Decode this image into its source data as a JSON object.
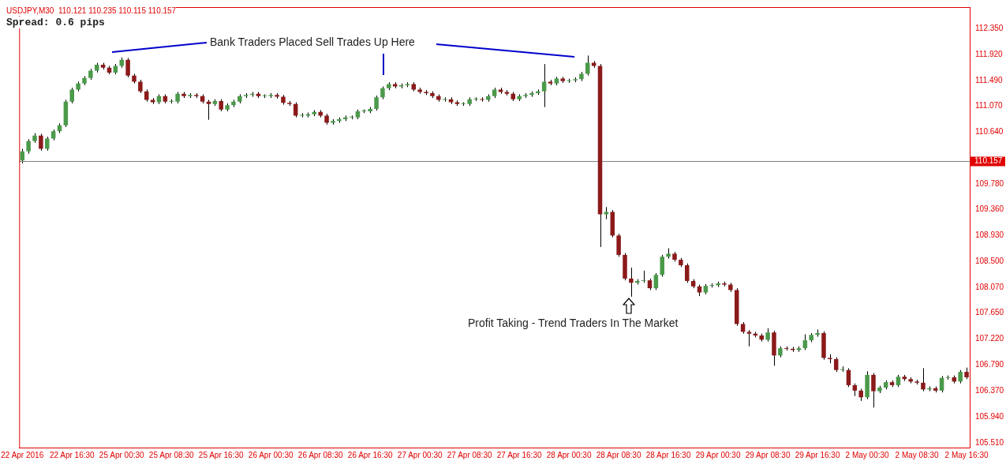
{
  "chart_data": {
    "type": "candlestick",
    "title": "USDJPY,M30  110.121 110.235 110.115 110.157",
    "annotations": [
      "Spread: 0.6 pips",
      "Bank Traders Placed Sell Trades Up Here",
      "Profit Taking - Trend Traders In The Market"
    ],
    "categories": [
      "22 Apr 2016",
      null,
      null,
      null,
      null,
      null,
      null,
      null,
      "22 Apr 16:30",
      null,
      null,
      null,
      null,
      null,
      null,
      null,
      "25 Apr 00:30",
      null,
      null,
      null,
      null,
      null,
      null,
      null,
      "25 Apr 08:30",
      null,
      null,
      null,
      null,
      null,
      null,
      null,
      "25 Apr 16:30",
      null,
      null,
      null,
      null,
      null,
      null,
      null,
      "26 Apr 00:30",
      null,
      null,
      null,
      null,
      null,
      null,
      null,
      "26 Apr 08:30",
      null,
      null,
      null,
      null,
      null,
      null,
      null,
      "26 Apr 16:30",
      null,
      null,
      null,
      null,
      null,
      null,
      null,
      "27 Apr 00:30",
      null,
      null,
      null,
      null,
      null,
      null,
      null,
      "27 Apr 08:30",
      null,
      null,
      null,
      null,
      null,
      null,
      null,
      "27 Apr 16:30",
      null,
      null,
      null,
      null,
      null,
      null,
      null,
      "28 Apr 00:30",
      null,
      null,
      null,
      null,
      null,
      null,
      null,
      "28 Apr 08:30",
      null,
      null,
      null,
      null,
      null,
      null,
      null,
      "28 Apr 16:30",
      null,
      null,
      null,
      null,
      null,
      null,
      null,
      "29 Apr 00:30",
      null,
      null,
      null,
      null,
      null,
      null,
      null,
      "29 Apr 08:30",
      null,
      null,
      null,
      null,
      null,
      null,
      null,
      "29 Apr 16:30",
      null,
      null,
      null,
      null,
      null,
      null,
      null,
      "2 May 00:30",
      null,
      null,
      null,
      null,
      null,
      null,
      null,
      "2 May 08:30",
      null,
      null,
      null,
      null,
      null,
      null,
      null,
      "2 May 16:30"
    ],
    "ohlc": [
      [
        110.17,
        110.36,
        110.12,
        110.32
      ],
      [
        110.32,
        110.52,
        110.28,
        110.49
      ],
      [
        110.49,
        110.62,
        110.46,
        110.58
      ],
      [
        110.58,
        110.61,
        110.33,
        110.36
      ],
      [
        110.36,
        110.56,
        110.33,
        110.53
      ],
      [
        110.53,
        110.68,
        110.5,
        110.65
      ],
      [
        110.65,
        110.78,
        110.62,
        110.75
      ],
      [
        110.75,
        111.17,
        110.72,
        111.14
      ],
      [
        111.14,
        111.37,
        111.11,
        111.34
      ],
      [
        111.34,
        111.47,
        111.31,
        111.44
      ],
      [
        111.44,
        111.56,
        111.41,
        111.53
      ],
      [
        111.53,
        111.68,
        111.5,
        111.65
      ],
      [
        111.65,
        111.78,
        111.62,
        111.75
      ],
      [
        111.75,
        111.78,
        111.67,
        111.7
      ],
      [
        111.7,
        111.73,
        111.59,
        111.62
      ],
      [
        111.62,
        111.76,
        111.59,
        111.73
      ],
      [
        111.73,
        111.87,
        111.7,
        111.83
      ],
      [
        111.83,
        111.86,
        111.54,
        111.57
      ],
      [
        111.57,
        111.6,
        111.44,
        111.47
      ],
      [
        111.47,
        111.5,
        111.28,
        111.31
      ],
      [
        111.31,
        111.34,
        111.14,
        111.17
      ],
      [
        111.17,
        111.2,
        111.1,
        111.13
      ],
      [
        111.13,
        111.26,
        111.1,
        111.23
      ],
      [
        111.23,
        111.26,
        111.11,
        111.14
      ],
      [
        111.14,
        111.18,
        111.11,
        111.14
      ],
      [
        111.14,
        111.3,
        111.11,
        111.27
      ],
      [
        111.27,
        111.3,
        111.2,
        111.23
      ],
      [
        111.23,
        111.28,
        111.2,
        111.25
      ],
      [
        111.25,
        111.28,
        111.2,
        111.23
      ],
      [
        111.23,
        111.26,
        111.11,
        111.14
      ],
      [
        111.14,
        111.17,
        110.84,
        111.1
      ],
      [
        111.1,
        111.18,
        111.07,
        111.15
      ],
      [
        111.15,
        111.18,
        110.98,
        111.01
      ],
      [
        111.01,
        111.11,
        110.98,
        111.08
      ],
      [
        111.08,
        111.17,
        111.05,
        111.14
      ],
      [
        111.14,
        111.26,
        111.11,
        111.23
      ],
      [
        111.23,
        111.28,
        111.2,
        111.25
      ],
      [
        111.25,
        111.3,
        111.22,
        111.27
      ],
      [
        111.27,
        111.3,
        111.2,
        111.23
      ],
      [
        111.23,
        111.26,
        111.2,
        111.23
      ],
      [
        111.23,
        111.28,
        111.2,
        111.25
      ],
      [
        111.25,
        111.28,
        111.19,
        111.22
      ],
      [
        111.22,
        111.25,
        111.09,
        111.12
      ],
      [
        111.12,
        111.15,
        111.07,
        111.1
      ],
      [
        111.1,
        111.13,
        110.88,
        110.91
      ],
      [
        110.91,
        110.95,
        110.88,
        110.91
      ],
      [
        110.91,
        110.96,
        110.88,
        110.93
      ],
      [
        110.93,
        111.0,
        110.9,
        110.97
      ],
      [
        110.97,
        111.0,
        110.88,
        110.91
      ],
      [
        110.91,
        110.94,
        110.76,
        110.79
      ],
      [
        110.79,
        110.85,
        110.76,
        110.82
      ],
      [
        110.82,
        110.88,
        110.79,
        110.85
      ],
      [
        110.85,
        110.91,
        110.82,
        110.88
      ],
      [
        110.88,
        110.91,
        110.85,
        110.88
      ],
      [
        110.88,
        111.01,
        110.85,
        110.98
      ],
      [
        110.98,
        111.01,
        110.95,
        110.98
      ],
      [
        110.98,
        111.05,
        110.95,
        111.02
      ],
      [
        111.02,
        111.24,
        110.99,
        111.21
      ],
      [
        111.21,
        111.39,
        111.18,
        111.36
      ],
      [
        111.36,
        111.46,
        111.33,
        111.43
      ],
      [
        111.43,
        111.46,
        111.36,
        111.39
      ],
      [
        111.39,
        111.44,
        111.36,
        111.41
      ],
      [
        111.41,
        111.46,
        111.38,
        111.43
      ],
      [
        111.43,
        111.46,
        111.31,
        111.34
      ],
      [
        111.34,
        111.37,
        111.27,
        111.3
      ],
      [
        111.3,
        111.33,
        111.25,
        111.28
      ],
      [
        111.28,
        111.31,
        111.2,
        111.23
      ],
      [
        111.23,
        111.26,
        111.14,
        111.17
      ],
      [
        111.17,
        111.21,
        111.14,
        111.18
      ],
      [
        111.18,
        111.21,
        111.1,
        111.13
      ],
      [
        111.13,
        111.16,
        111.07,
        111.1
      ],
      [
        111.1,
        111.13,
        111.07,
        111.1
      ],
      [
        111.1,
        111.21,
        111.07,
        111.18
      ],
      [
        111.18,
        111.21,
        111.15,
        111.18
      ],
      [
        111.18,
        111.21,
        111.14,
        111.17
      ],
      [
        111.17,
        111.26,
        111.14,
        111.23
      ],
      [
        111.23,
        111.37,
        111.2,
        111.34
      ],
      [
        111.34,
        111.37,
        111.27,
        111.3
      ],
      [
        111.3,
        111.33,
        111.24,
        111.27
      ],
      [
        111.27,
        111.3,
        111.15,
        111.18
      ],
      [
        111.18,
        111.26,
        111.15,
        111.23
      ],
      [
        111.23,
        111.28,
        111.2,
        111.25
      ],
      [
        111.25,
        111.31,
        111.22,
        111.28
      ],
      [
        111.28,
        111.34,
        111.25,
        111.31
      ],
      [
        111.31,
        111.76,
        111.05,
        111.47
      ],
      [
        111.47,
        111.5,
        111.41,
        111.44
      ],
      [
        111.44,
        111.55,
        111.41,
        111.52
      ],
      [
        111.52,
        111.55,
        111.45,
        111.48
      ],
      [
        111.48,
        111.52,
        111.45,
        111.49
      ],
      [
        111.49,
        111.54,
        111.46,
        111.51
      ],
      [
        111.51,
        111.63,
        111.48,
        111.6
      ],
      [
        111.6,
        111.9,
        111.57,
        111.78
      ],
      [
        111.78,
        111.81,
        111.7,
        111.73
      ],
      [
        111.73,
        111.76,
        108.74,
        109.28
      ],
      [
        109.28,
        109.4,
        109.2,
        109.32
      ],
      [
        109.32,
        109.35,
        108.9,
        108.93
      ],
      [
        108.93,
        108.96,
        108.58,
        108.61
      ],
      [
        108.61,
        108.64,
        108.19,
        108.22
      ],
      [
        108.22,
        108.4,
        107.92,
        108.15
      ],
      [
        108.15,
        108.21,
        108.12,
        108.18
      ],
      [
        108.18,
        108.35,
        108.15,
        108.19
      ],
      [
        108.19,
        108.22,
        108.03,
        108.06
      ],
      [
        108.06,
        108.31,
        108.03,
        108.28
      ],
      [
        108.28,
        108.61,
        108.25,
        108.58
      ],
      [
        108.58,
        108.72,
        108.55,
        108.63
      ],
      [
        108.63,
        108.66,
        108.5,
        108.53
      ],
      [
        108.53,
        108.56,
        108.41,
        108.44
      ],
      [
        108.44,
        108.47,
        108.15,
        108.18
      ],
      [
        108.18,
        108.21,
        108.06,
        108.09
      ],
      [
        108.09,
        108.12,
        107.93,
        107.99
      ],
      [
        107.99,
        108.13,
        107.96,
        108.1
      ],
      [
        108.1,
        108.14,
        108.07,
        108.11
      ],
      [
        108.11,
        108.17,
        108.08,
        108.14
      ],
      [
        108.14,
        108.17,
        108.09,
        108.12
      ],
      [
        108.12,
        108.15,
        108.0,
        108.03
      ],
      [
        108.03,
        108.06,
        107.44,
        107.47
      ],
      [
        107.47,
        107.5,
        107.31,
        107.34
      ],
      [
        107.34,
        107.37,
        107.1,
        107.31
      ],
      [
        107.31,
        107.34,
        107.25,
        107.28
      ],
      [
        107.28,
        107.31,
        107.18,
        107.21
      ],
      [
        107.21,
        107.4,
        107.18,
        107.33
      ],
      [
        107.33,
        107.36,
        106.78,
        106.95
      ],
      [
        106.95,
        107.1,
        106.92,
        107.07
      ],
      [
        107.07,
        107.1,
        107.03,
        107.06
      ],
      [
        107.06,
        107.09,
        107.01,
        107.04
      ],
      [
        107.04,
        107.1,
        107.01,
        107.07
      ],
      [
        107.07,
        107.3,
        107.04,
        107.2
      ],
      [
        107.2,
        107.32,
        107.17,
        107.29
      ],
      [
        107.29,
        107.38,
        107.26,
        107.32
      ],
      [
        107.32,
        107.35,
        106.88,
        106.91
      ],
      [
        106.91,
        106.97,
        106.82,
        106.89
      ],
      [
        106.89,
        106.92,
        106.68,
        106.71
      ],
      [
        106.71,
        106.77,
        106.68,
        106.71
      ],
      [
        106.71,
        106.74,
        106.43,
        106.46
      ],
      [
        106.46,
        106.49,
        106.28,
        106.37
      ],
      [
        106.37,
        106.4,
        106.2,
        106.26
      ],
      [
        106.26,
        106.69,
        106.23,
        106.63
      ],
      [
        106.63,
        106.66,
        106.09,
        106.36
      ],
      [
        106.36,
        106.45,
        106.33,
        106.42
      ],
      [
        106.42,
        106.54,
        106.39,
        106.51
      ],
      [
        106.51,
        106.54,
        106.43,
        106.46
      ],
      [
        106.46,
        106.63,
        106.43,
        106.6
      ],
      [
        106.6,
        106.63,
        106.53,
        106.56
      ],
      [
        106.56,
        106.59,
        106.49,
        106.52
      ],
      [
        106.52,
        106.55,
        106.47,
        106.5
      ],
      [
        106.5,
        106.74,
        106.36,
        106.39
      ],
      [
        106.39,
        106.44,
        106.36,
        106.41
      ],
      [
        106.41,
        106.44,
        106.34,
        106.37
      ],
      [
        106.37,
        106.61,
        106.34,
        106.58
      ],
      [
        106.58,
        106.62,
        106.55,
        106.59
      ],
      [
        106.59,
        106.62,
        106.49,
        106.52
      ],
      [
        106.52,
        106.71,
        106.49,
        106.68
      ],
      [
        106.68,
        106.75,
        106.56,
        106.59
      ]
    ],
    "ylim": [
      105.43,
      112.7
    ],
    "yticks": [
      {
        "value": 105.51,
        "label": "105.510"
      },
      {
        "value": 105.94,
        "label": "105.940"
      },
      {
        "value": 106.37,
        "label": "106.370"
      },
      {
        "value": 106.79,
        "label": "106.790"
      },
      {
        "value": 107.22,
        "label": "107.220"
      },
      {
        "value": 107.65,
        "label": "107.650"
      },
      {
        "value": 108.07,
        "label": "108.070"
      },
      {
        "value": 108.5,
        "label": "108.500"
      },
      {
        "value": 108.93,
        "label": "108.930"
      },
      {
        "value": 109.36,
        "label": "109.360"
      },
      {
        "value": 109.78,
        "label": "109.780"
      },
      {
        "value": 110.64,
        "label": "110.640"
      },
      {
        "value": 111.07,
        "label": "111.070"
      },
      {
        "value": 111.49,
        "label": "111.490"
      },
      {
        "value": 111.92,
        "label": "111.920"
      },
      {
        "value": 112.35,
        "label": "112.350"
      }
    ],
    "ref_lines": [
      {
        "axis": "y",
        "value": 110.157,
        "label": "110.157",
        "color": "#808080"
      }
    ],
    "grid": false,
    "legend": false
  }
}
